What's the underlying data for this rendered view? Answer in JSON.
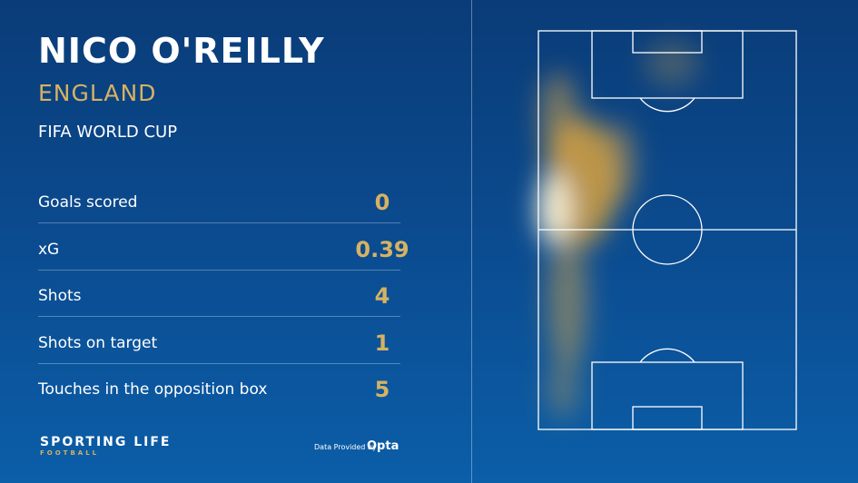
{
  "header": {
    "name": "NICO O'REILLY",
    "team": "ENGLAND",
    "competition": "FIFA WORLD CUP"
  },
  "stats": [
    {
      "label": "Goals scored",
      "value": 0
    },
    {
      "label": "xG",
      "value": 0.39
    },
    {
      "label": "Shots",
      "value": 4
    },
    {
      "label": "Shots on target",
      "value": 1
    },
    {
      "label": "Touches in the opposition box",
      "value": 5
    }
  ],
  "footer": {
    "brand": "SPORTING LIFE",
    "sub": "FOOTBALL",
    "credit": "Data Provided by",
    "provider": "Opta"
  }
}
